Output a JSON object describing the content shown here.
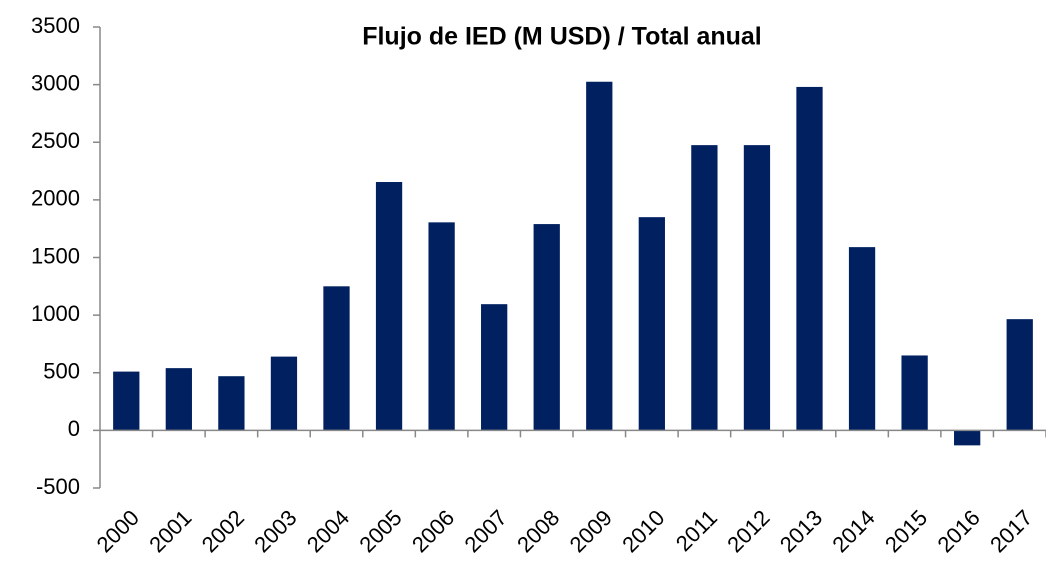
{
  "chart_data": {
    "type": "bar",
    "title": "Flujo de IED (M USD) / Total anual",
    "categories": [
      "2000",
      "2001",
      "2002",
      "2003",
      "2004",
      "2005",
      "2006",
      "2007",
      "2008",
      "2009",
      "2010",
      "2011",
      "2012",
      "2013",
      "2014",
      "2015",
      "2016",
      "2017"
    ],
    "values": [
      510,
      540,
      470,
      640,
      1250,
      2155,
      1805,
      1095,
      1790,
      3025,
      1850,
      2475,
      2475,
      2980,
      1590,
      650,
      -130,
      965
    ],
    "color": "#002060",
    "ylim": [
      -500,
      3500
    ],
    "yticks": [
      -500,
      0,
      500,
      1000,
      1500,
      2000,
      2500,
      3000,
      3500
    ],
    "grid": false
  }
}
